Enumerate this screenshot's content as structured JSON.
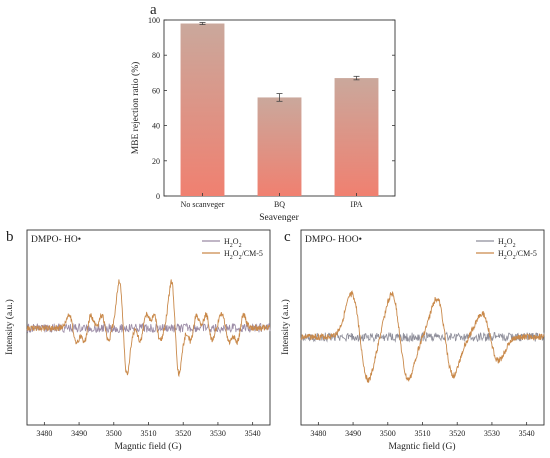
{
  "chart_data": [
    {
      "panel": "a",
      "type": "bar",
      "xlabel": "Seavenger",
      "ylabel": "MBE rejection ratio (%)",
      "categories": [
        "No scanveger",
        "BQ",
        "IPA"
      ],
      "values": [
        98,
        56,
        67
      ],
      "errors": [
        0.6,
        2.2,
        1.0
      ],
      "ylim": [
        0,
        100
      ],
      "yticks": [
        0,
        20,
        40,
        60,
        80,
        100
      ],
      "bar_gradient": [
        "#f08070",
        "#caa89c"
      ],
      "grid": false,
      "legend": "none"
    },
    {
      "panel": "b",
      "type": "line",
      "box_title": "DMPO- HO•",
      "xlabel": "Magntic field (G)",
      "ylabel": "Intensity (a.u.)",
      "xlim": [
        3475,
        3545
      ],
      "xticks": [
        3480,
        3490,
        3500,
        3510,
        3520,
        3530,
        3540
      ],
      "yticks_shown": false,
      "legend": "top-right",
      "series": [
        {
          "name": "H2O2",
          "color": "#9a8aa5",
          "style": "baseline-noise",
          "level": 0.0
        },
        {
          "name": "H2O2/CM-5",
          "color": "#c9894a",
          "style": "dmpo-oh-quartet",
          "peaks_x": [
            3488.2,
            3502.7,
            3517.7,
            3532.2
          ],
          "peak_amplitudes": [
            0.3,
            1.0,
            1.0,
            0.3
          ]
        }
      ]
    },
    {
      "panel": "c",
      "type": "line",
      "box_title": "DMPO- HOO•",
      "xlabel": "Magntic field (G)",
      "ylabel": "Intensity (a.u.)",
      "xlim": [
        3475,
        3545
      ],
      "xticks": [
        3480,
        3490,
        3500,
        3510,
        3520,
        3530,
        3540
      ],
      "yticks_shown": false,
      "legend": "top-right",
      "series": [
        {
          "name": "H2O2",
          "color": "#8e8e9a",
          "style": "baseline-noise",
          "level": 0.0
        },
        {
          "name": "H2O2/CM-5",
          "color": "#c9894a",
          "style": "dmpo-ooh-sextet",
          "peaks_x": [
            3489.5,
            3501.0,
            3514.0,
            3527.0
          ],
          "peak_amplitudes": [
            1.0,
            1.0,
            0.9,
            0.55
          ]
        }
      ]
    }
  ]
}
